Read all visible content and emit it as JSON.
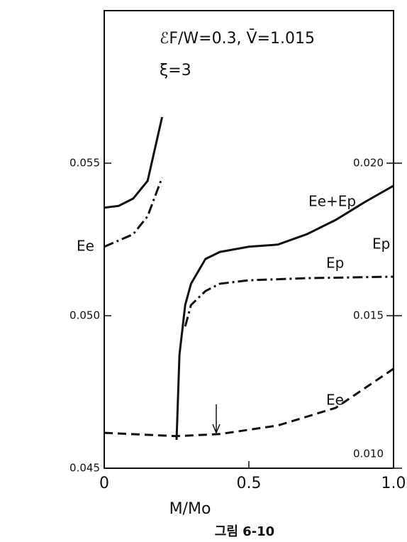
{
  "chart_data": {
    "type": "line",
    "title": "ℰF/W=0.3, V̄=1.015",
    "subtitle": "ξ=3",
    "xlabel": "M/Mo",
    "caption": "그림 6-10",
    "xlim": [
      0,
      1.0
    ],
    "xticks": [
      0,
      0.5,
      {
        "value": 1,
        "label": "1.0"
      }
    ],
    "ylim": [
      0.045,
      0.06
    ],
    "yticks": [
      0.045,
      {
        "value": 0.05,
        "label": "0.050"
      },
      0.055
    ],
    "y2lim": [
      0.01,
      0.025
    ],
    "y2ticks": [
      {
        "value": 0.01,
        "label": "0.010"
      },
      0.015,
      {
        "value": 0.02,
        "label": "0.020"
      }
    ],
    "series": [
      {
        "name": "Ee+Ep",
        "color": "#111111",
        "style": "solid",
        "x": [
          0,
          0.05,
          0.1,
          0.15,
          0.2,
          0.225,
          0.25,
          0.26,
          0.28,
          0.3,
          0.35,
          0.4,
          0.5,
          0.6,
          0.7,
          0.8,
          0.9,
          1.0
        ],
        "values": [
          0.05354,
          0.0536,
          0.05384,
          0.05442,
          0.05651,
          null,
          0.04593,
          0.04872,
          0.05035,
          0.05105,
          0.05186,
          0.05209,
          0.05226,
          0.05233,
          0.05267,
          0.05314,
          0.05372,
          0.05426
        ]
      },
      {
        "name": "Ep",
        "color": "#111111",
        "style": "dashdot",
        "axis": "y2",
        "x": [
          0,
          0.1,
          0.15,
          0.2,
          0.24,
          0.28,
          0.3,
          0.35,
          0.4,
          0.5,
          0.7,
          1.0
        ],
        "values": [
          0.01726,
          0.01767,
          0.01826,
          0.01953,
          null,
          0.01465,
          0.01535,
          0.01581,
          0.01605,
          0.01616,
          0.01623,
          0.01628
        ]
      },
      {
        "name": "Ee",
        "color": "#111111",
        "style": "dashed",
        "x": [
          0,
          0.25,
          0.4,
          0.6,
          0.8,
          1.0
        ],
        "values": [
          0.04616,
          0.04605,
          0.04612,
          0.0464,
          0.04698,
          0.04826
        ]
      }
    ]
  }
}
